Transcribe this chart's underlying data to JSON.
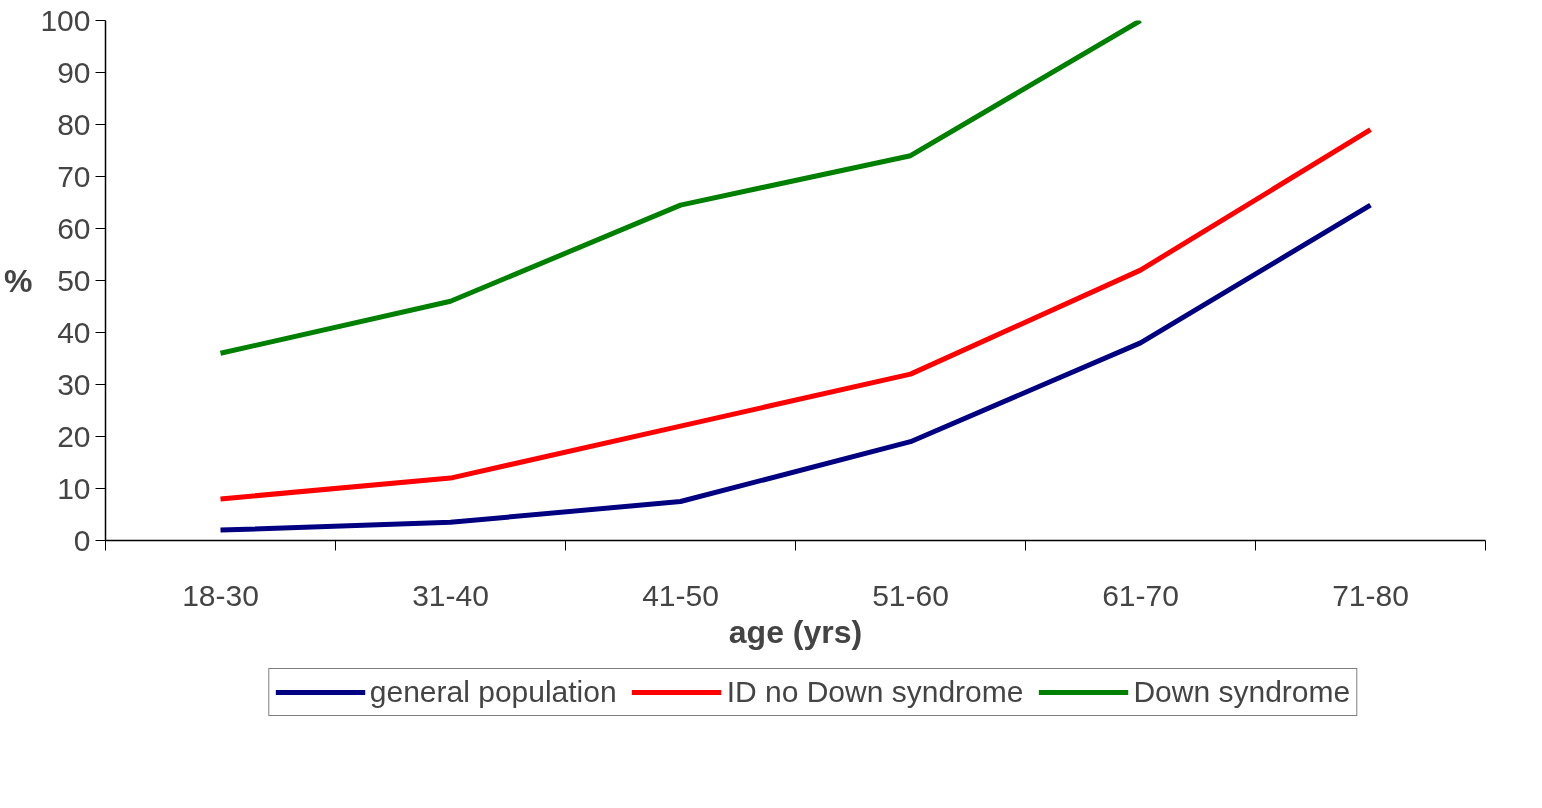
{
  "chart_data": {
    "type": "line",
    "xlabel": "age (yrs)",
    "ylabel": "%",
    "categories": [
      "18-30",
      "31-40",
      "41-50",
      "51-60",
      "61-70",
      "71-80"
    ],
    "series": [
      {
        "name": "general population",
        "color": "#000080",
        "values": [
          2,
          3.5,
          7.5,
          19,
          38,
          64.5
        ]
      },
      {
        "name": "ID no Down syndrome",
        "color": "#ff0000",
        "values": [
          8,
          12,
          22,
          32,
          52,
          79
        ]
      },
      {
        "name": "Down syndrome",
        "color": "#008000",
        "values": [
          36,
          46,
          64.5,
          74,
          100,
          null
        ]
      }
    ],
    "ylim": [
      0,
      100
    ],
    "yticks": [
      0,
      10,
      20,
      30,
      40,
      50,
      60,
      70,
      80,
      90,
      100
    ],
    "grid": false,
    "legend": "bottom",
    "marker": "none",
    "line_style": "solid"
  }
}
